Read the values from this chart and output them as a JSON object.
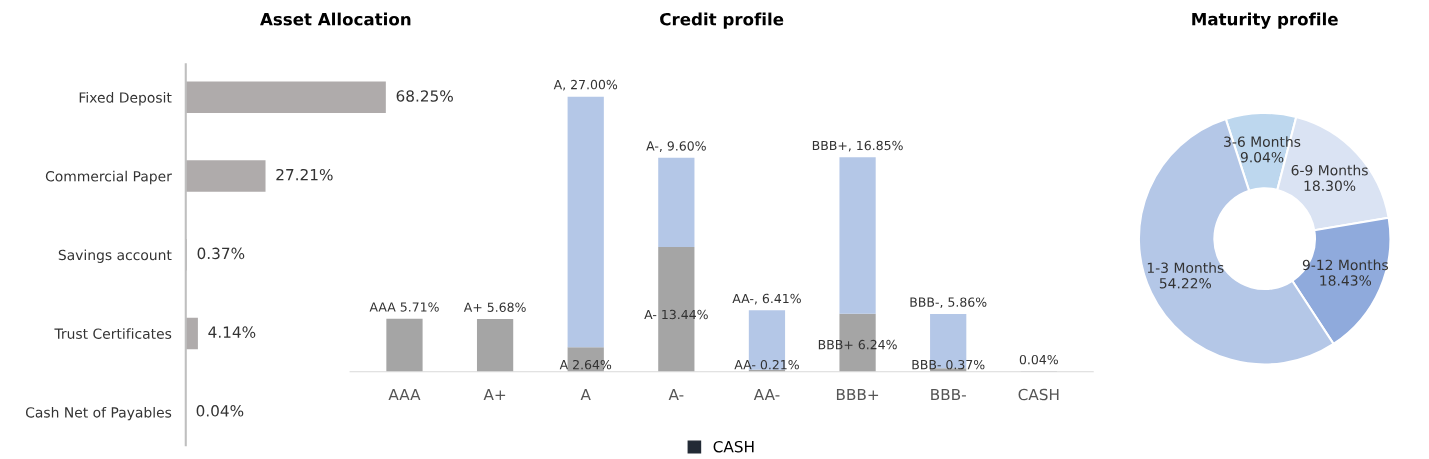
{
  "chart_data": [
    {
      "type": "bar",
      "title": "Asset Allocation",
      "orientation": "horizontal",
      "categories": [
        "Fixed Deposit",
        "Commercial Paper",
        "Savings account",
        "Trust Certificates",
        "Cash Net of Payables"
      ],
      "values": [
        68.25,
        27.21,
        0.37,
        4.14,
        0.04
      ],
      "value_labels": [
        "68.25%",
        "27.21%",
        "0.37%",
        "4.14%",
        "0.04%"
      ],
      "color": "#afabab"
    },
    {
      "type": "bar",
      "title": "Credit profile",
      "stacked": true,
      "legend": "bottom",
      "categories": [
        "AAA",
        "A+",
        "A",
        "A-",
        "AA-",
        "BBB+",
        "BBB-",
        "CASH"
      ],
      "series": [
        {
          "color": "#a5a5a5",
          "values": [
            5.71,
            5.68,
            2.64,
            13.44,
            0.21,
            6.24,
            0.37,
            null
          ],
          "value_labels": [
            "AAA 5.71%",
            "A+ 5.68%",
            "A 2.64%",
            "A- 13.44%",
            "AA- 0.21%",
            "BBB+ 6.24%",
            "BBB- 0.37%",
            null
          ]
        },
        {
          "color": "#b4c7e7",
          "values": [
            null,
            null,
            27.0,
            9.6,
            6.41,
            16.85,
            5.86,
            null
          ],
          "value_labels": [
            null,
            null,
            "A, 27.00%",
            "A-, 9.60%",
            "AA-, 6.41%",
            "BBB+, 16.85%",
            "BBB-, 5.86%",
            null
          ]
        },
        {
          "name": "CASH",
          "color": "#222a35",
          "values": [
            null,
            null,
            null,
            null,
            null,
            null,
            null,
            0.04
          ],
          "value_labels": [
            null,
            null,
            null,
            null,
            null,
            null,
            null,
            "0.04%"
          ]
        }
      ]
    },
    {
      "type": "donut",
      "title": "Maturity profile",
      "categories": [
        "3-6 Months",
        "6-9 Months",
        "9-12 Months",
        "1-3 Months"
      ],
      "values": [
        9.04,
        18.3,
        18.43,
        54.22
      ],
      "value_labels": [
        "9.04%",
        "18.30%",
        "18.43%",
        "54.22%"
      ],
      "colors": [
        "#bdd7ee",
        "#dae3f3",
        "#8faadc",
        "#b4c7e7"
      ]
    }
  ]
}
